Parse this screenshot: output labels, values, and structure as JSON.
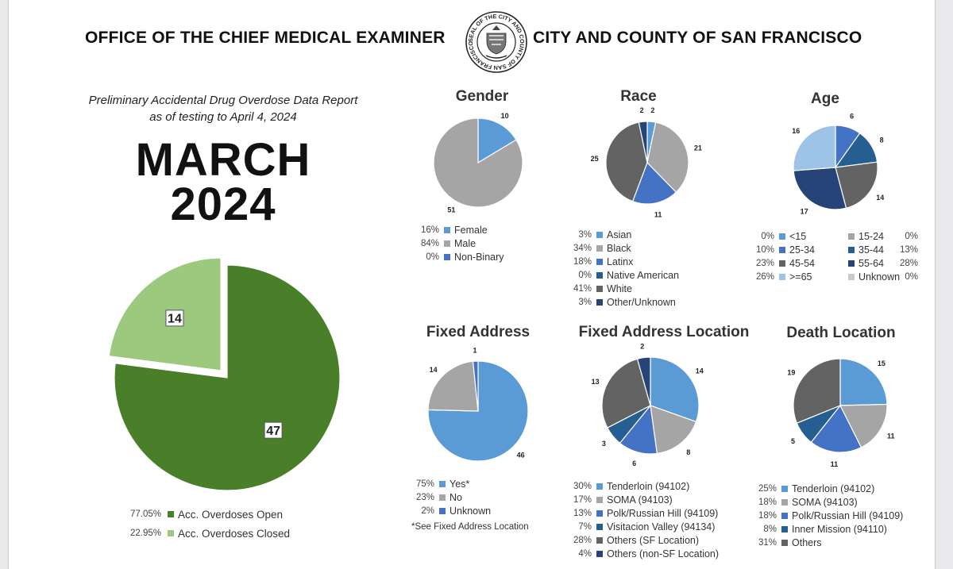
{
  "header": {
    "left_title": "OFFICE OF THE CHIEF MEDICAL EXAMINER",
    "right_title": "CITY AND COUNTY OF SAN FRANCISCO",
    "seal_text": "SEAL OF THE CITY AND COUNTY OF SAN FRANCISCO"
  },
  "report": {
    "subtitle_line1": "Preliminary Accidental Drug Overdose Data Report",
    "subtitle_line2": "as of testing to April 4, 2024",
    "month": "MARCH",
    "year": "2024"
  },
  "fixed_note": "*See Fixed Address Location",
  "chart_data": [
    {
      "id": "main",
      "type": "pie",
      "title": "",
      "slices": [
        {
          "label": "Acc. Overdoses Open",
          "value": 47,
          "percent": "77.05%",
          "color": "#4a7f2a"
        },
        {
          "label": "Acc. Overdoses Closed",
          "value": 14,
          "percent": "22.95%",
          "color": "#9cc97e"
        }
      ]
    },
    {
      "id": "gender",
      "type": "pie",
      "title": "Gender",
      "slices": [
        {
          "label": "Female",
          "value": 10,
          "percent": "16%",
          "color": "#5b9bd5"
        },
        {
          "label": "Male",
          "value": 51,
          "percent": "84%",
          "color": "#a5a5a5"
        },
        {
          "label": "Non-Binary",
          "value": 0,
          "percent": "0%",
          "color": "#4472c4"
        }
      ]
    },
    {
      "id": "race",
      "type": "pie",
      "title": "Race",
      "slices": [
        {
          "label": "Asian",
          "value": 2,
          "percent": "3%",
          "color": "#5b9bd5"
        },
        {
          "label": "Black",
          "value": 21,
          "percent": "34%",
          "color": "#a5a5a5"
        },
        {
          "label": "Latinx",
          "value": 11,
          "percent": "18%",
          "color": "#4472c4"
        },
        {
          "label": "Native American",
          "value": 0,
          "percent": "0%",
          "color": "#255e91"
        },
        {
          "label": "White",
          "value": 25,
          "percent": "41%",
          "color": "#636363"
        },
        {
          "label": "Other/Unknown",
          "value": 2,
          "percent": "3%",
          "color": "#264478"
        }
      ]
    },
    {
      "id": "age",
      "type": "pie",
      "title": "Age",
      "slices": [
        {
          "label": "<15",
          "value": 0,
          "percent": "0%",
          "color": "#5b9bd5"
        },
        {
          "label": "15-24",
          "value": 0,
          "percent": "0%",
          "color": "#a5a5a5"
        },
        {
          "label": "25-34",
          "value": 6,
          "percent": "10%",
          "color": "#4472c4"
        },
        {
          "label": "35-44",
          "value": 8,
          "percent": "13%",
          "color": "#255e91"
        },
        {
          "label": "45-54",
          "value": 14,
          "percent": "23%",
          "color": "#636363"
        },
        {
          "label": "55-64",
          "value": 17,
          "percent": "28%",
          "color": "#264478"
        },
        {
          "label": ">=65",
          "value": 16,
          "percent": "26%",
          "color": "#9dc3e6"
        },
        {
          "label": "Unknown",
          "value": 0,
          "percent": "0%",
          "color": "#c9c9c9"
        }
      ]
    },
    {
      "id": "fixed",
      "type": "pie",
      "title": "Fixed Address",
      "slices": [
        {
          "label": "Yes*",
          "value": 46,
          "percent": "75%",
          "color": "#5b9bd5"
        },
        {
          "label": "No",
          "value": 14,
          "percent": "23%",
          "color": "#a5a5a5"
        },
        {
          "label": "Unknown",
          "value": 1,
          "percent": "2%",
          "color": "#4472c4"
        }
      ]
    },
    {
      "id": "fixedloc",
      "type": "pie",
      "title": "Fixed Address Location",
      "slices": [
        {
          "label": "Tenderloin (94102)",
          "value": 14,
          "percent": "30%",
          "color": "#5b9bd5"
        },
        {
          "label": "SOMA (94103)",
          "value": 8,
          "percent": "17%",
          "color": "#a5a5a5"
        },
        {
          "label": "Polk/Russian Hill (94109)",
          "value": 6,
          "percent": "13%",
          "color": "#4472c4"
        },
        {
          "label": "Visitacion Valley (94134)",
          "value": 3,
          "percent": "7%",
          "color": "#255e91"
        },
        {
          "label": "Others (SF Location)",
          "value": 13,
          "percent": "28%",
          "color": "#636363"
        },
        {
          "label": "Others (non-SF Location)",
          "value": 2,
          "percent": "4%",
          "color": "#264478"
        }
      ]
    },
    {
      "id": "death",
      "type": "pie",
      "title": "Death Location",
      "slices": [
        {
          "label": "Tenderloin (94102)",
          "value": 15,
          "percent": "25%",
          "color": "#5b9bd5"
        },
        {
          "label": "SOMA (94103)",
          "value": 11,
          "percent": "18%",
          "color": "#a5a5a5"
        },
        {
          "label": "Polk/Russian Hill (94109)",
          "value": 11,
          "percent": "18%",
          "color": "#4472c4"
        },
        {
          "label": "Inner Mission (94110)",
          "value": 5,
          "percent": "8%",
          "color": "#255e91"
        },
        {
          "label": "Others",
          "value": 19,
          "percent": "31%",
          "color": "#636363"
        }
      ]
    }
  ]
}
